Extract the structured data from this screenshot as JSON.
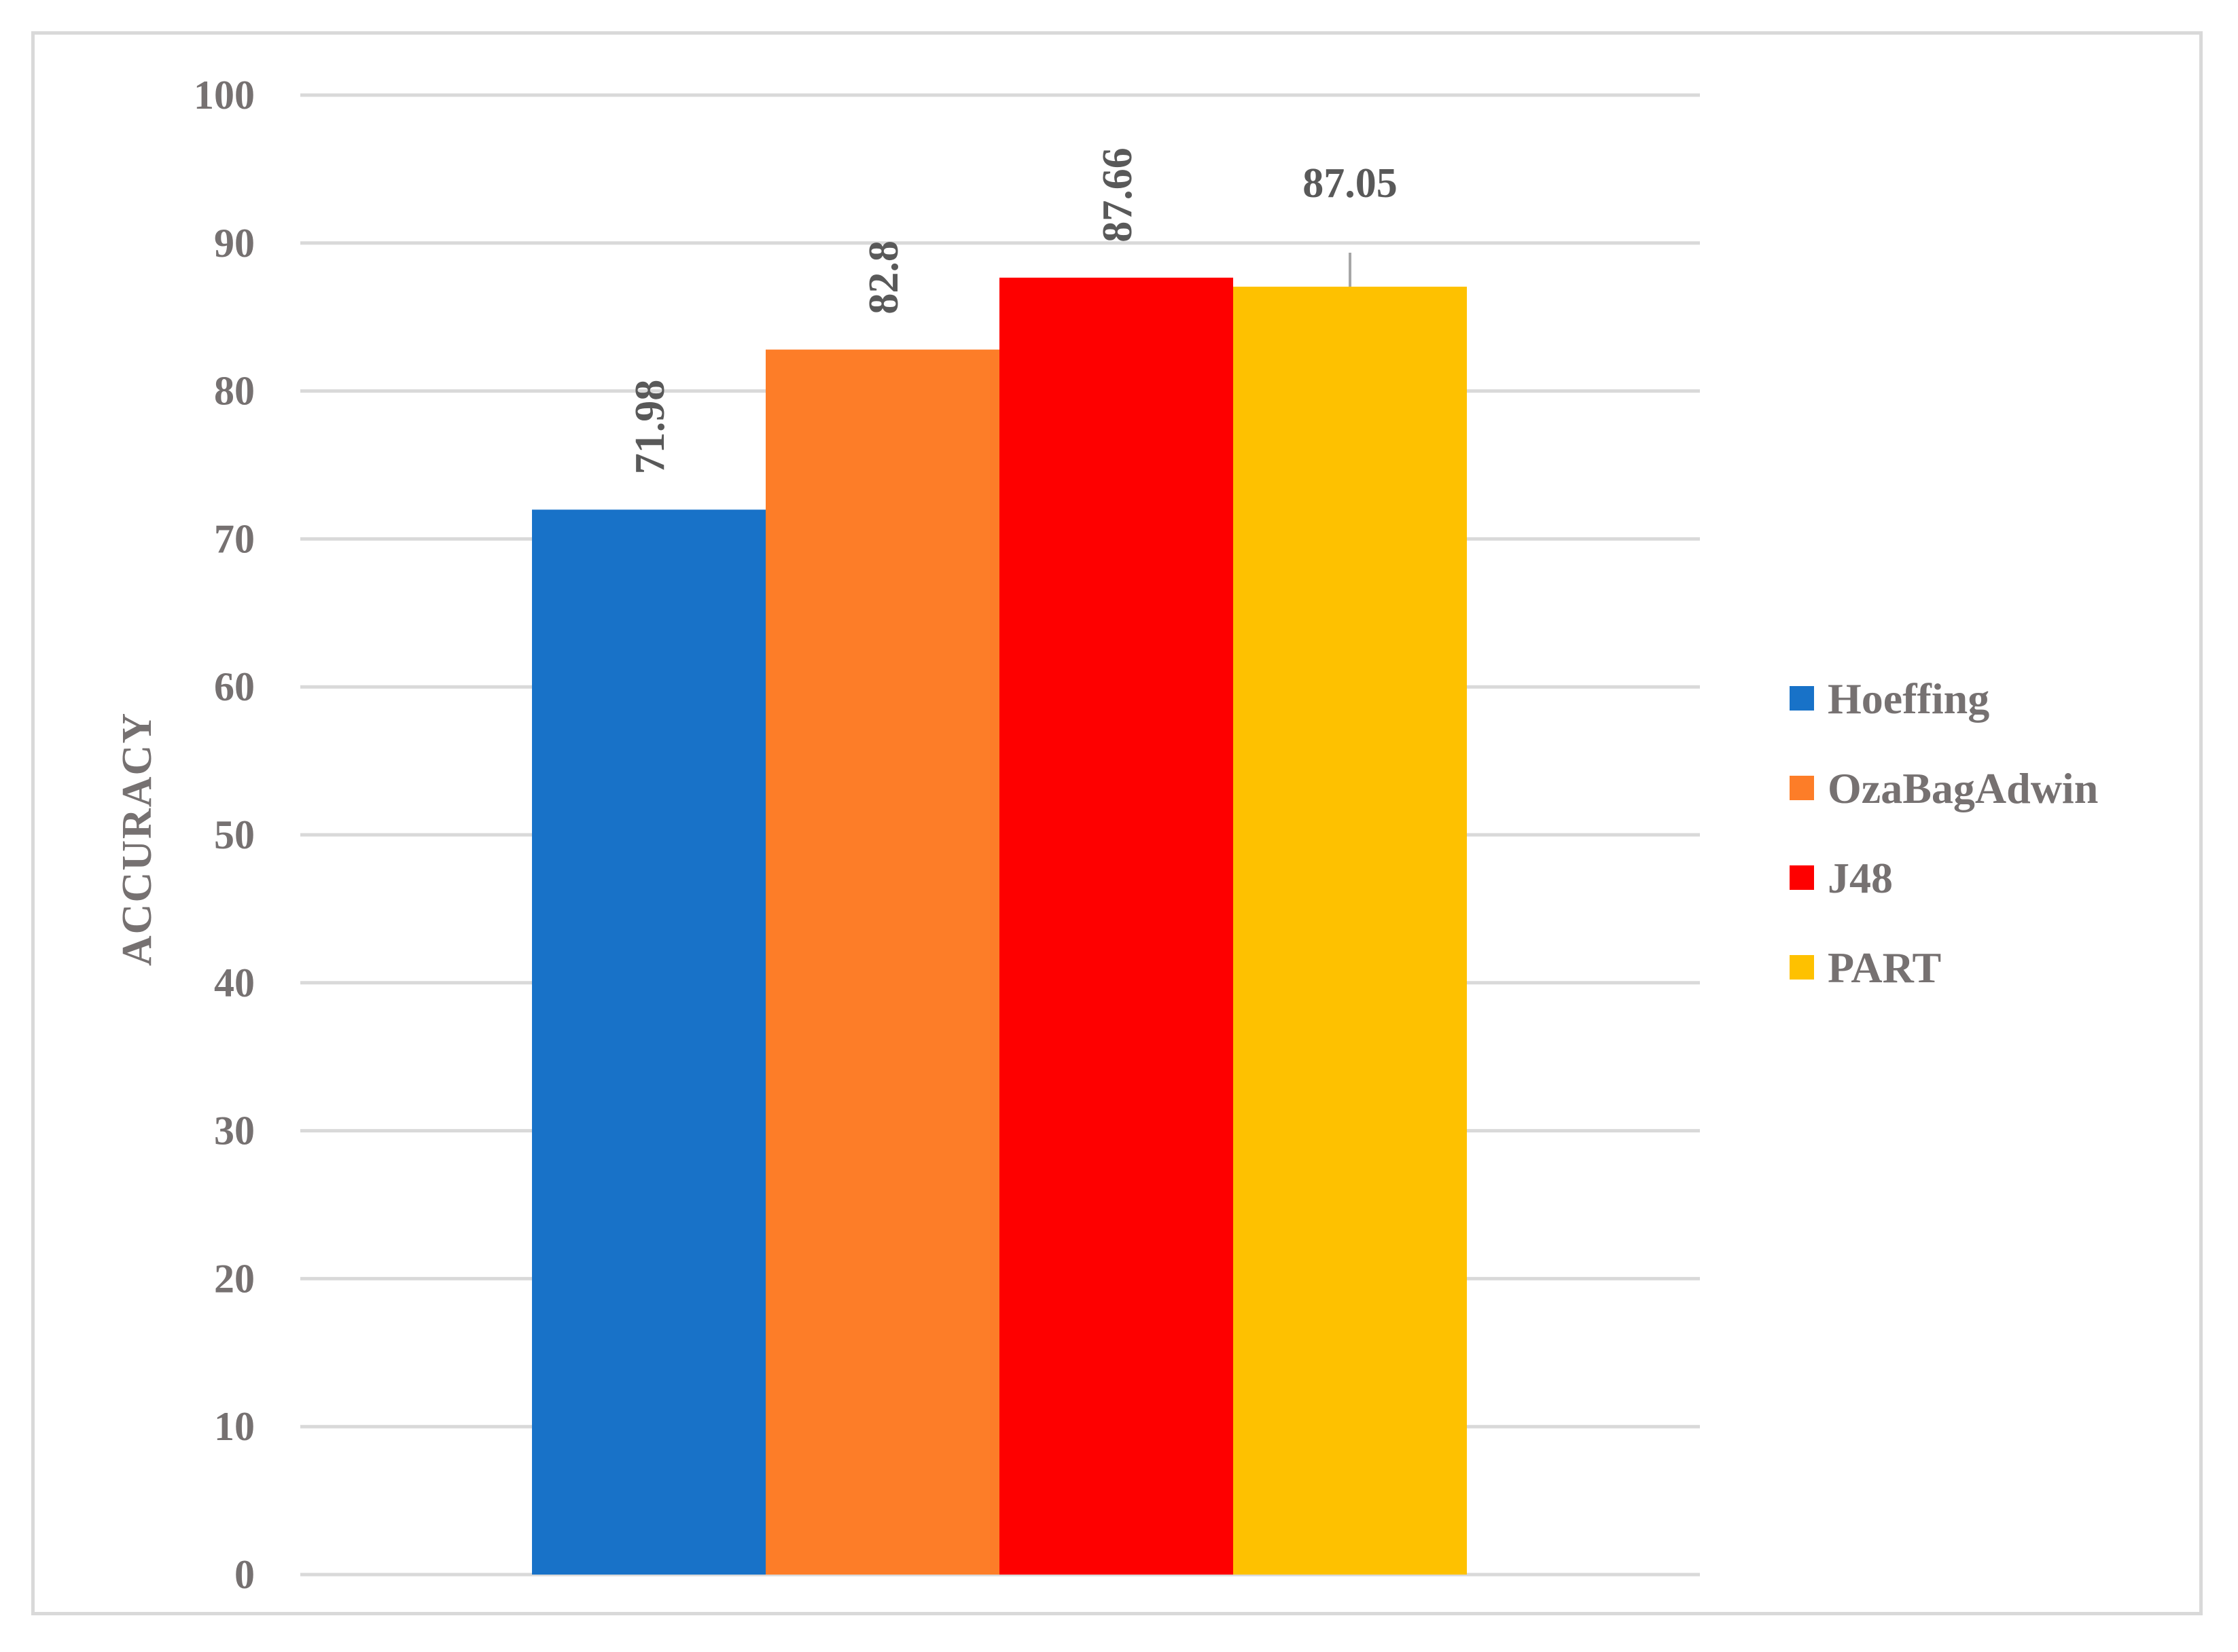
{
  "chart_data": {
    "type": "bar",
    "title": "",
    "xlabel": "",
    "ylabel": "ACCURACY",
    "ylim": [
      0,
      100
    ],
    "yticks": [
      0,
      10,
      20,
      30,
      40,
      50,
      60,
      70,
      80,
      90,
      100
    ],
    "ytick_labels": [
      "0",
      "10",
      "20",
      "30",
      "40",
      "50",
      "60",
      "70",
      "80",
      "90",
      "100"
    ],
    "grid": true,
    "legend_position": "right",
    "categories": [
      ""
    ],
    "series": [
      {
        "name": "Hoeffing",
        "values": [
          71.98
        ],
        "label": "71.98",
        "color": "#1872c8",
        "label_orientation": "vertical"
      },
      {
        "name": "OzaBagAdwin",
        "values": [
          82.8
        ],
        "label": "82.8",
        "color": "#fd7d28",
        "label_orientation": "vertical"
      },
      {
        "name": "J48",
        "values": [
          87.66
        ],
        "label": "87.66",
        "color": "#fe0000",
        "label_orientation": "vertical"
      },
      {
        "name": "PART",
        "values": [
          87.05
        ],
        "label": "87.05",
        "color": "#fec100",
        "label_orientation": "horizontal"
      }
    ]
  }
}
